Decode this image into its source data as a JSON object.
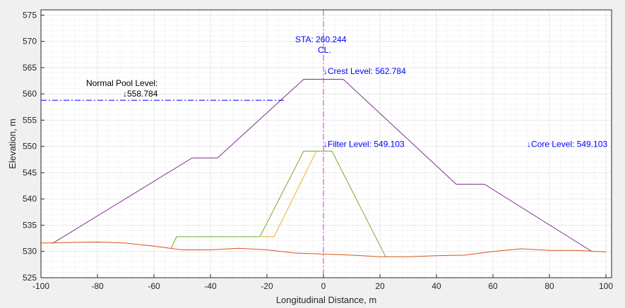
{
  "chart_data": {
    "type": "line",
    "xlabel": "Longitudinal Distance, m",
    "ylabel": "Elevation, m",
    "xlim": [
      -100,
      102
    ],
    "ylim": [
      525,
      576
    ],
    "xticks": [
      -100,
      -80,
      -60,
      -40,
      -20,
      0,
      20,
      40,
      60,
      80,
      100
    ],
    "yticks": [
      525,
      530,
      535,
      540,
      545,
      550,
      555,
      560,
      565,
      570,
      575
    ],
    "grid": true,
    "minor_grid": true,
    "series": [
      {
        "color": "#7e2f8e",
        "x": [
          -96,
          -46.5,
          -37.5,
          -7,
          7,
          47,
          57,
          95
        ],
        "y": [
          531.5,
          547.8,
          547.8,
          562.784,
          562.784,
          542.8,
          542.8,
          530
        ]
      },
      {
        "color": "#77ac30",
        "x": [
          -54,
          -52,
          -22.5,
          -7,
          3,
          22
        ],
        "y": [
          530.5,
          532.8,
          532.8,
          549.103,
          549.103,
          529
        ]
      },
      {
        "color": "#edb120",
        "x": [
          -22,
          -17.5,
          -2.5
        ],
        "y": [
          532.8,
          532.8,
          549.103
        ]
      },
      {
        "color": "#d95319",
        "x": [
          -100,
          -80,
          -70,
          -60,
          -50,
          -40,
          -30,
          -20,
          -10,
          0,
          10,
          20,
          30,
          40,
          50,
          60,
          70,
          80,
          90,
          100
        ],
        "y": [
          531.6,
          531.8,
          531.6,
          531,
          530.3,
          530.3,
          530.6,
          530.3,
          529.7,
          529.5,
          529.3,
          529,
          529,
          529.2,
          529.3,
          530,
          530.5,
          530.2,
          530.2,
          529.9
        ]
      }
    ],
    "pool_line": {
      "color": "#0000ff",
      "y": 558.784,
      "x_from": -100,
      "x_to": -14
    },
    "centerline": {
      "color": "#cc33cc",
      "x": 0
    },
    "annotations": [
      {
        "text": "Normal Pool Level:",
        "x": -84,
        "y": 561.5,
        "color": "#000000"
      },
      {
        "text": "↓558.784",
        "x": -71,
        "y": 559.5,
        "color": "#000000"
      },
      {
        "text": "STA: 260.244",
        "x": -10,
        "y": 569.8,
        "color": "#0000ff"
      },
      {
        "text": "CL.",
        "x": -2,
        "y": 567.8,
        "color": "#0000ff"
      },
      {
        "text": "↓Crest Level: 562.784",
        "x": 0,
        "y": 563.8,
        "color": "#0000ff"
      },
      {
        "text": "↓Filter Level: 549.103",
        "x": 0,
        "y": 549.9,
        "color": "#0000ff"
      },
      {
        "text": "↓Core Level: 549.103",
        "x": 72,
        "y": 549.9,
        "color": "#0000ff"
      }
    ]
  }
}
